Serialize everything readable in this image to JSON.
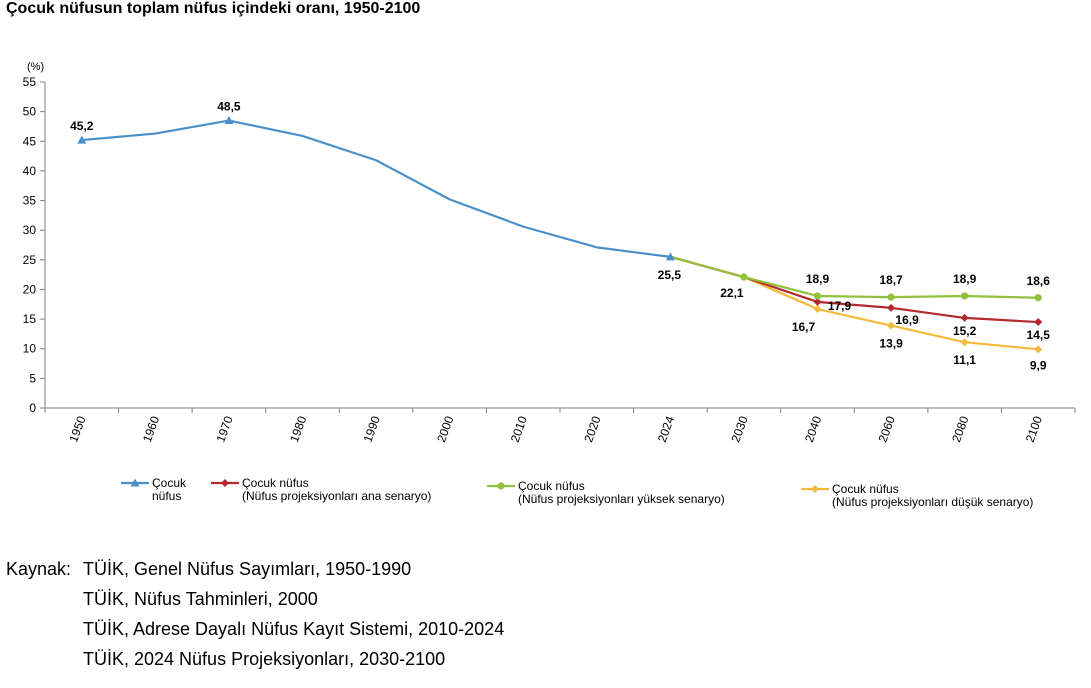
{
  "title": "Çocuk nüfusun toplam nüfus içindeki oranı, 1950-2100",
  "chart_data": {
    "type": "line",
    "y_unit_label": "(%)",
    "ylim": [
      0,
      55
    ],
    "yticks": [
      0,
      5,
      10,
      15,
      20,
      25,
      30,
      35,
      40,
      45,
      50,
      55
    ],
    "categories": [
      "1950",
      "1960",
      "1970",
      "1980",
      "1990",
      "2000",
      "2010",
      "2020",
      "2024",
      "2030",
      "2040",
      "2060",
      "2080",
      "2100"
    ],
    "grid": false,
    "legend_position": "bottom",
    "series": [
      {
        "name_lines": [
          "Çocuk",
          "nüfus"
        ],
        "color": "#4a90c8",
        "marker": "triangle",
        "values": [
          45.2,
          46.3,
          48.5,
          45.9,
          41.8,
          35.2,
          30.6,
          27.1,
          25.5,
          null,
          null,
          null,
          null,
          null
        ],
        "labels": {
          "0": "45,2",
          "2": "48,5",
          "8": "25,5"
        }
      },
      {
        "name_lines": [
          "Çocuk nüfus",
          "(Nüfus projeksiyonları ana senaryo)"
        ],
        "color": "#b22a2e",
        "marker": "diamond",
        "values": [
          null,
          null,
          null,
          null,
          null,
          null,
          null,
          null,
          25.5,
          22.1,
          17.9,
          16.9,
          15.2,
          14.5
        ],
        "labels": {
          "9": "22,1",
          "10": "17,9",
          "11": "16,9",
          "12": "15,2",
          "13": "14,5"
        }
      },
      {
        "name_lines": [
          "Çocuk nüfus",
          "(Nüfus projeksiyonları yüksek senaryo)"
        ],
        "color": "#92c13e",
        "marker": "circle",
        "values": [
          null,
          null,
          null,
          null,
          null,
          null,
          null,
          null,
          25.5,
          22.1,
          18.9,
          18.7,
          18.9,
          18.6
        ],
        "labels": {
          "10": "18,9",
          "11": "18,7",
          "12": "18,9",
          "13": "18,6"
        }
      },
      {
        "name_lines": [
          "Çocuk nüfus",
          "(Nüfus projeksiyonları düşük senaryo)"
        ],
        "color": "#f5b93b",
        "marker": "diamond",
        "values": [
          null,
          null,
          null,
          null,
          null,
          null,
          null,
          null,
          25.5,
          22.1,
          16.7,
          13.9,
          11.1,
          9.9
        ],
        "labels": {
          "10": "16,7",
          "11": "13,9",
          "12": "11,1",
          "13": "9,9"
        }
      }
    ]
  },
  "sources": {
    "label": "Kaynak:",
    "lines": [
      "TÜİK, Genel Nüfus Sayımları, 1950-1990",
      "TÜİK, Nüfus Tahminleri, 2000",
      "TÜİK, Adrese Dayalı Nüfus Kayıt Sistemi, 2010-2024",
      "TÜİK, 2024 Nüfus Projeksiyonları, 2030-2100"
    ]
  }
}
